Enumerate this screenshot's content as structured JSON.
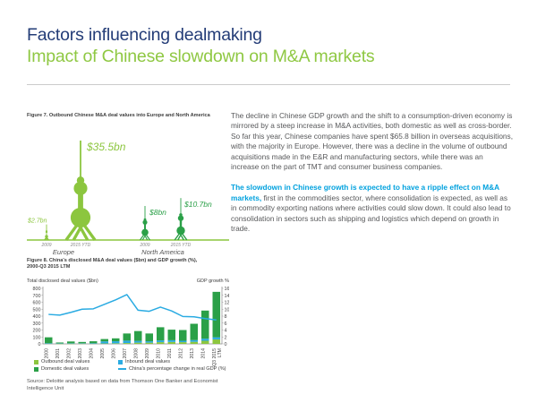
{
  "header": {
    "title": "Factors influencing dealmaking",
    "subtitle": "Impact of Chinese slowdown on M&A markets"
  },
  "figure7": {
    "title": "Figure 7. Outbound Chinese M&A deal values into Europe and North America",
    "groups": [
      {
        "region": "Europe",
        "bars": [
          {
            "year": "2009",
            "value": 2.7,
            "label": "$2.7bn"
          },
          {
            "year": "2015 YTD",
            "value": 35.5,
            "label": "$35.5bn"
          }
        ]
      },
      {
        "region": "North America",
        "bars": [
          {
            "year": "2009",
            "value": 8,
            "label": "$8bn"
          },
          {
            "year": "2015 YTD",
            "value": 10.7,
            "label": "$10.7bn"
          }
        ]
      }
    ]
  },
  "figure8": {
    "title_line1": "Figure 8. China's disclosed M&A deal values ($bn) and GDP growth (%),",
    "title_line2": "2000-Q3 2015 LTM",
    "left_axis_label": "Total disclosed deal values ($bn)",
    "right_axis_label": "GDP growth %"
  },
  "chart_data": [
    {
      "id": "figure7",
      "type": "bar",
      "subtype": "pictorial-towers",
      "title": "Figure 7. Outbound Chinese M&A deal values into Europe and North America",
      "categories": [
        "Europe 2009",
        "Europe 2015 YTD",
        "North America 2009",
        "North America 2015 YTD"
      ],
      "values": [
        2.7,
        35.5,
        8,
        10.7
      ],
      "unit": "$bn"
    },
    {
      "id": "figure8",
      "type": "bar",
      "stacked": true,
      "title": "Figure 8. China's disclosed M&A deal values ($bn) and GDP growth (%), 2000-Q3 2015 LTM",
      "categories": [
        "2000",
        "2001",
        "2002",
        "2003",
        "2004",
        "2005",
        "2006",
        "2007",
        "2008",
        "2009",
        "2010",
        "2011",
        "2012",
        "2013",
        "2014",
        "Q3 2015 LTM"
      ],
      "series": [
        {
          "name": "Outbound deal values",
          "color": "#8cc63f",
          "values": [
            5,
            3,
            3,
            4,
            5,
            6,
            8,
            12,
            18,
            18,
            25,
            28,
            25,
            30,
            45,
            65
          ]
        },
        {
          "name": "Inbound deal values",
          "color": "#2aabe2",
          "values": [
            8,
            5,
            6,
            6,
            8,
            30,
            30,
            35,
            25,
            20,
            25,
            25,
            20,
            25,
            30,
            30
          ]
        },
        {
          "name": "Domestic deal values",
          "color": "#2ba048",
          "values": [
            82,
            12,
            26,
            18,
            25,
            34,
            42,
            103,
            142,
            112,
            190,
            152,
            155,
            235,
            405,
            655
          ]
        }
      ],
      "line": {
        "name": "China's percentage change in real GDP (%)",
        "color": "#2aabe2",
        "values": [
          8.5,
          8.3,
          9.1,
          10.0,
          10.1,
          11.4,
          12.7,
          14.2,
          9.7,
          9.4,
          10.6,
          9.5,
          7.9,
          7.8,
          7.3,
          6.9
        ]
      },
      "xlabel": "",
      "ylabel_left": "Total disclosed deal values ($bn)",
      "ylabel_right": "GDP growth %",
      "left_axis": {
        "min": 0,
        "max": 800,
        "step": 100
      },
      "right_axis": {
        "min": 0,
        "max": 16,
        "step": 2
      },
      "grid": false,
      "legend_position": "bottom"
    }
  ],
  "legend": {
    "items": [
      {
        "label": "Outbound deal values",
        "swatch": "square",
        "color": "#8cc63f"
      },
      {
        "label": "Inbound deal values",
        "swatch": "square",
        "color": "#2aabe2"
      },
      {
        "label": "Domestic deal values",
        "swatch": "square",
        "color": "#2ba048"
      },
      {
        "label": "China's percentage change in real GDP (%)",
        "swatch": "line",
        "color": "#2aabe2"
      }
    ]
  },
  "source": "Source: Deloitte analysis based on data from Thomson One Banker and Economist Intelligence Unit",
  "body": {
    "para1": "The decline in Chinese GDP growth and the shift to a consumption-driven economy is mirrored by a steep increase in M&A activities, both domestic as well as cross-border. So far this year, Chinese companies have spent $65.8 billion in overseas acquisitions, with the majority in Europe. However, there was a decline in the volume of outbound acquisitions made in the E&R and manufacturing sectors, while there was an increase on the part of TMT and consumer business companies.",
    "para2_highlight": "The slowdown in Chinese growth is expected to have a ripple effect on M&A markets,",
    "para2_rest": " first in the commodities sector, where consolidation is expected, as well as in commodity exporting nations where activities could slow down. It could also lead to consolidation in sectors such as shipping and logistics which depend on growth in trade."
  },
  "colors": {
    "title_navy": "#233c77",
    "accent_green": "#8fc843",
    "accent_cyan": "#00a1de",
    "light_green": "#8cc63f",
    "dark_green": "#2ba048",
    "line_blue": "#2aabe2"
  }
}
